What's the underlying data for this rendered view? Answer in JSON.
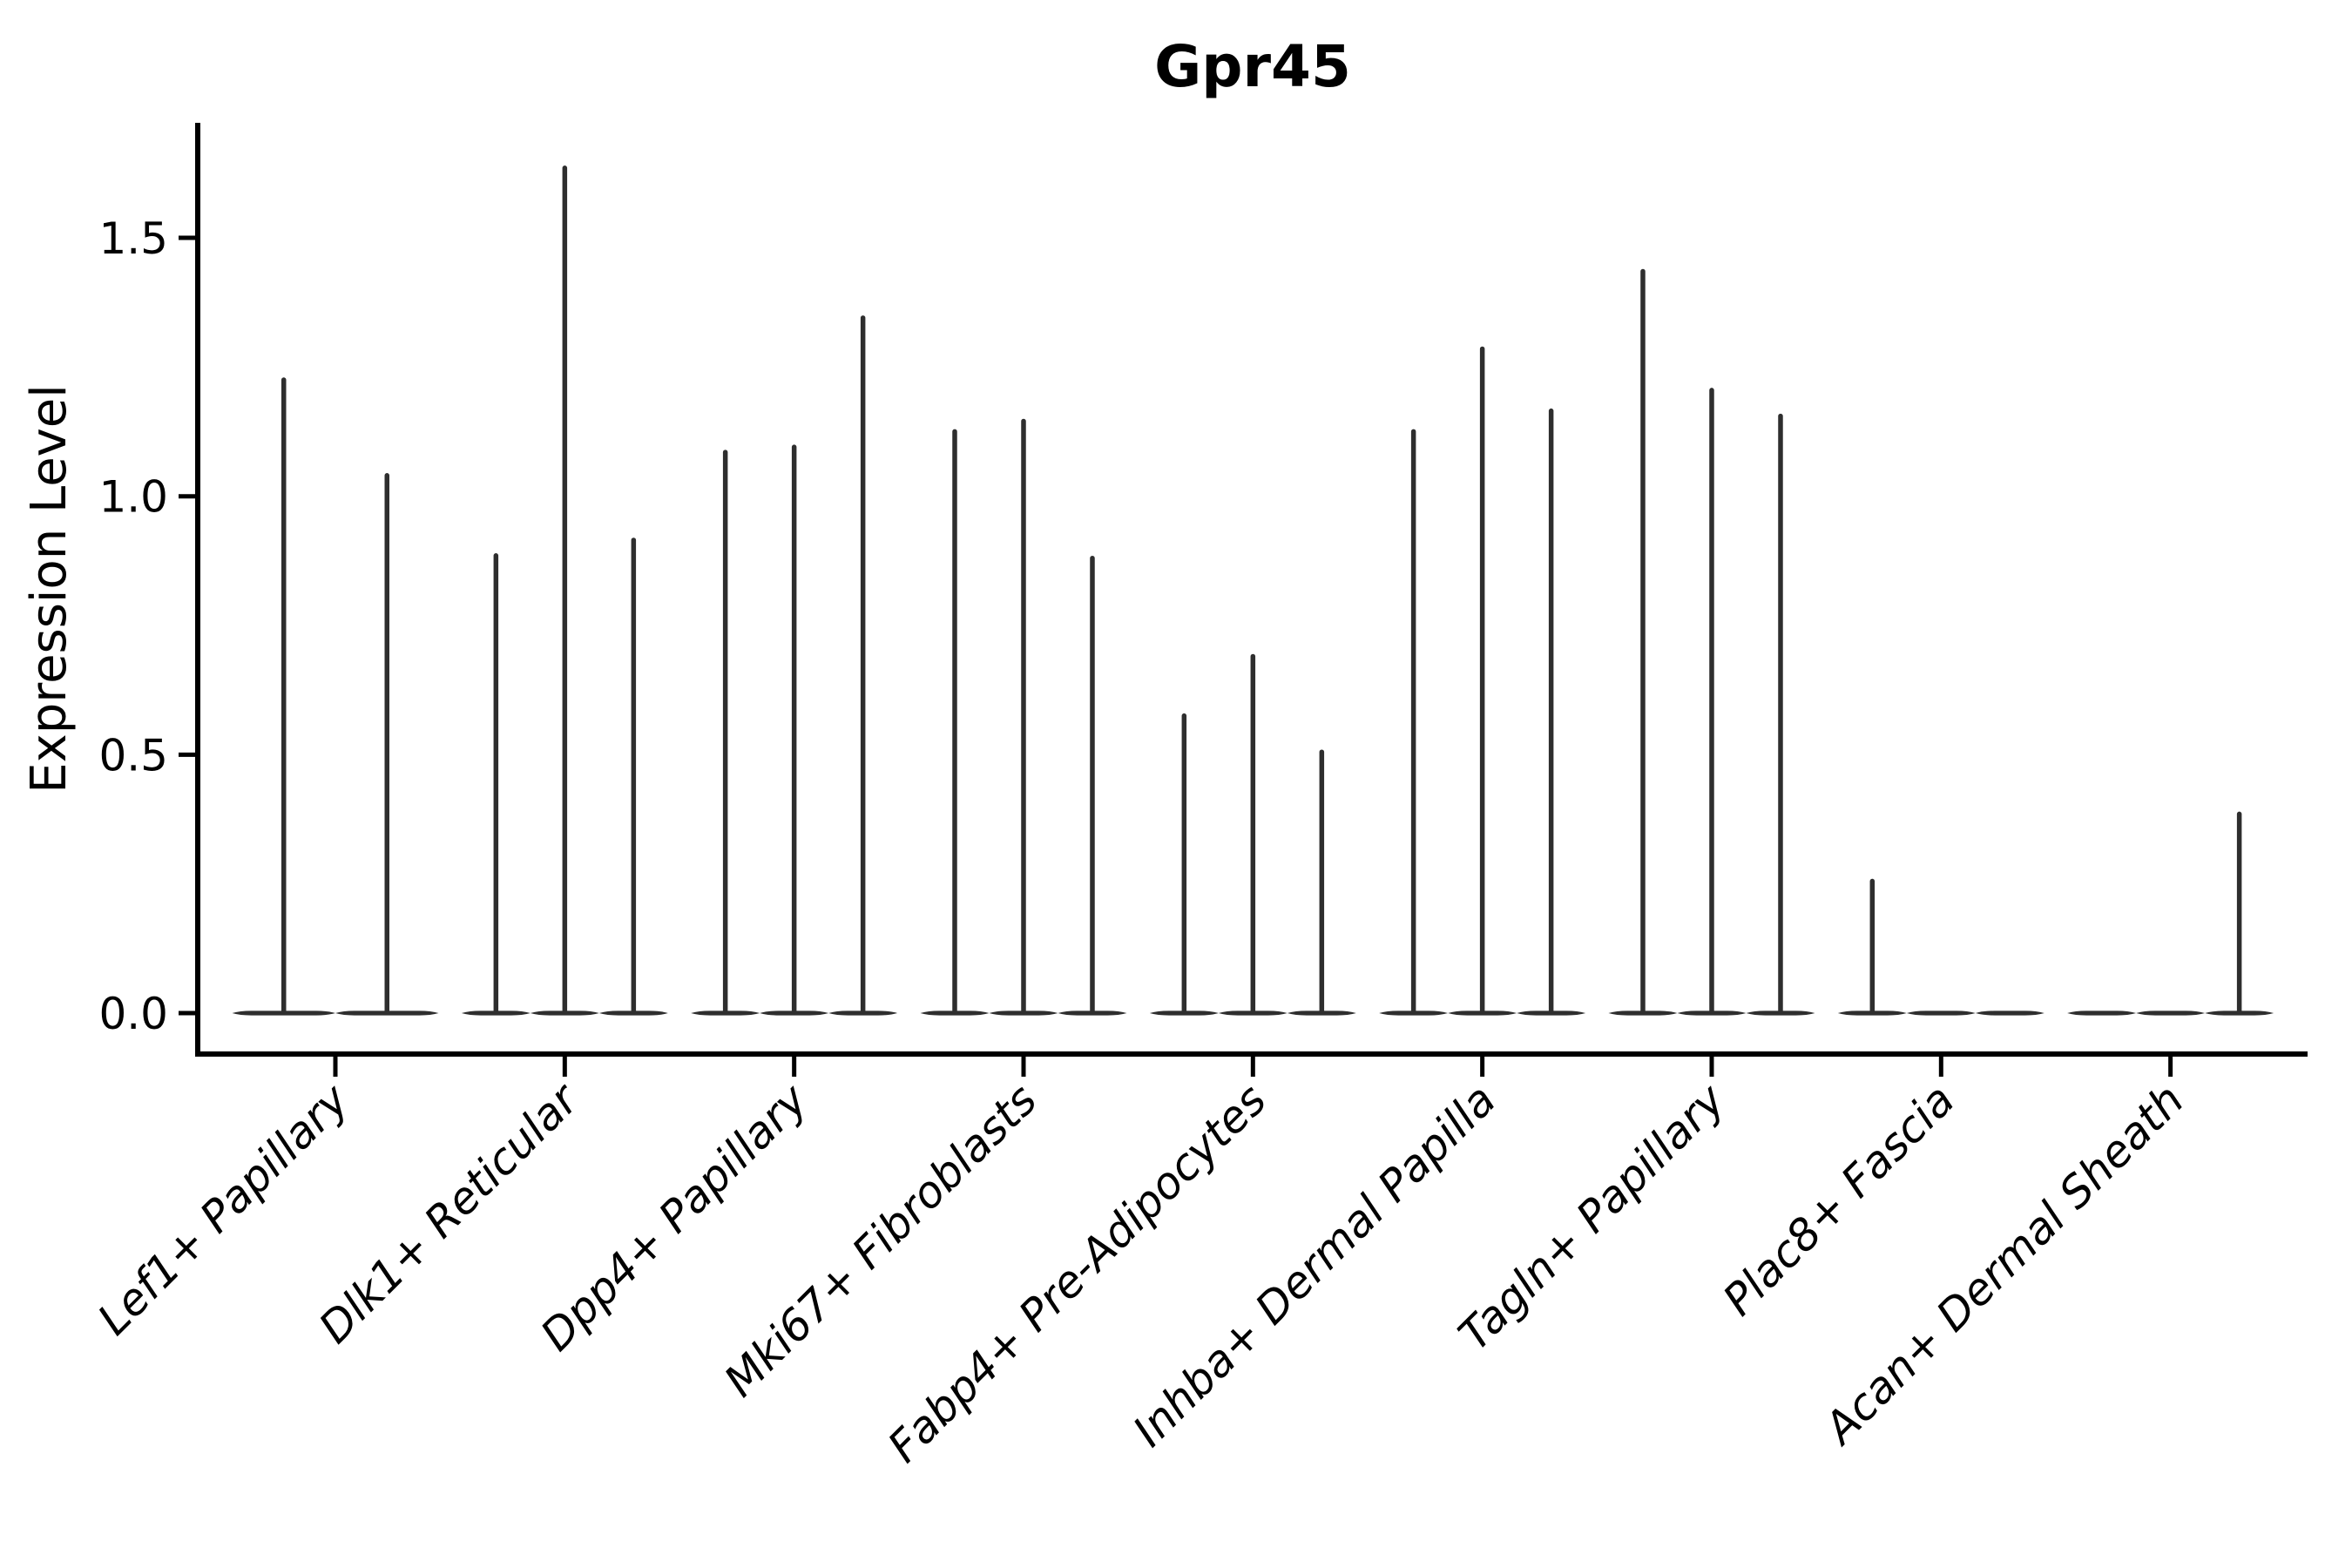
{
  "title": "Gpr45",
  "ylabel": "Expression Level",
  "colors": {
    "background": "#ffffff",
    "axis": "#000000",
    "text": "#000000",
    "violin_ink": "#2e2e2e"
  },
  "chart_data": {
    "type": "violin",
    "title": "Gpr45",
    "xlabel": "",
    "ylabel": "Expression Level",
    "yticks": [
      0.0,
      0.5,
      1.0,
      1.5
    ],
    "ytick_labels": [
      "0.0",
      "0.5",
      "1.0",
      "1.5"
    ],
    "ylim": [
      -0.08,
      1.72
    ],
    "grid": false,
    "legend": false,
    "xtick_rotation": 45,
    "categories": [
      "Lef1+ Papillary",
      "Dlk1+ Reticular",
      "Dpp4+ Papillary",
      "Mki67+ Fibroblasts",
      "Fabp4+ Pre-Adipocytes",
      "Inhba+ Dermal Papilla",
      "Tagln+ Papillary",
      "Plac8+ Fascia",
      "Acan+ Dermal Sheath"
    ],
    "description": "Narrow spike violins: most of each distribution sits at 0 (flat pancake base); each violin's spike top is the max expression value listed.",
    "groups": [
      {
        "category": "Lef1+ Papillary",
        "violin_peaks": [
          1.23,
          1.045
        ]
      },
      {
        "category": "Dlk1+ Reticular",
        "violin_peaks": [
          0.89,
          1.64,
          0.92
        ]
      },
      {
        "category": "Dpp4+ Papillary",
        "violin_peaks": [
          1.09,
          1.1,
          1.35
        ]
      },
      {
        "category": "Mki67+ Fibroblasts",
        "violin_peaks": [
          1.13,
          1.15,
          0.885
        ]
      },
      {
        "category": "Fabp4+ Pre-Adipocytes",
        "violin_peaks": [
          0.58,
          0.695,
          0.51
        ]
      },
      {
        "category": "Inhba+ Dermal Papilla",
        "violin_peaks": [
          1.13,
          1.29,
          1.17
        ]
      },
      {
        "category": "Tagln+ Papillary",
        "violin_peaks": [
          1.44,
          1.21,
          1.16
        ]
      },
      {
        "category": "Plac8+ Fascia",
        "violin_peaks": [
          0.26,
          0,
          0
        ]
      },
      {
        "category": "Acan+ Dermal Sheath",
        "violin_peaks": [
          0,
          0,
          0.39
        ]
      }
    ]
  }
}
